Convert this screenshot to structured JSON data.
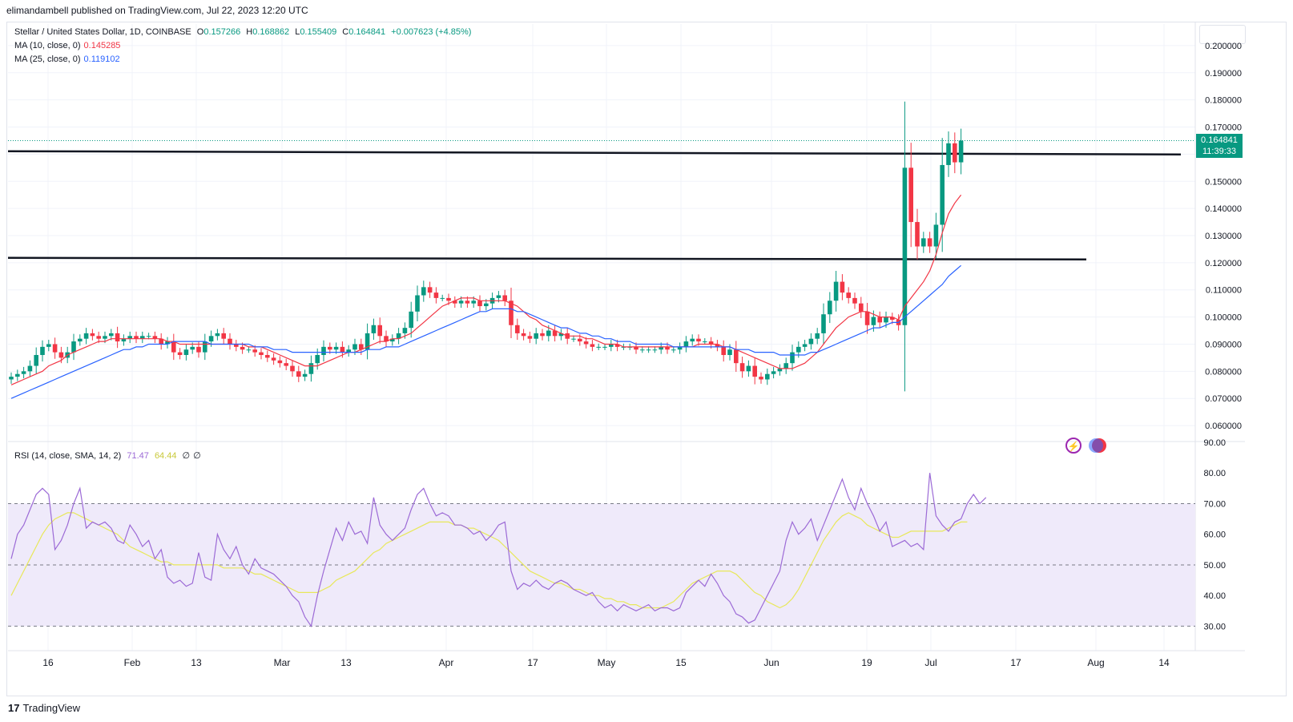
{
  "header": {
    "published": "elimandambell published on TradingView.com, Jul 22, 2023 12:20 UTC"
  },
  "legend": {
    "symbol": "Stellar / United States Dollar, 1D, COINBASE",
    "o_label": "O",
    "o": "0.157266",
    "h_label": "H",
    "h": "0.168862",
    "l_label": "L",
    "l": "0.155409",
    "c_label": "C",
    "c": "0.164841",
    "change": "+0.007623 (+4.85%)",
    "ma10_label": "MA (10, close, 0)",
    "ma10_value": "0.145285",
    "ma25_label": "MA (25, close, 0)",
    "ma25_value": "0.119102",
    "rsi_label": "RSI (14, close, SMA, 14, 2)",
    "rsi_value": "71.47",
    "rsi_ma_value": "64.44",
    "rsi_extra1": "∅",
    "rsi_extra2": "∅"
  },
  "last_price": {
    "price": "0.164841",
    "countdown": "11:39:33"
  },
  "footer": {
    "brand": "TradingView"
  },
  "colors": {
    "up": "#089981",
    "down": "#f23645",
    "ma10": "#f23645",
    "ma25": "#2962ff",
    "rsi": "#9c6ad6",
    "rsi_ma": "#e8e85a",
    "rsi_band": "#efeafa"
  },
  "chart_data": [
    {
      "type": "candlestick",
      "title": "Stellar / United States Dollar, 1D, COINBASE",
      "ylim": [
        0.055,
        0.205
      ],
      "y_ticks": [
        "0.060000",
        "0.070000",
        "0.080000",
        "0.090000",
        "0.100000",
        "0.110000",
        "0.120000",
        "0.130000",
        "0.140000",
        "0.150000",
        "0.160000",
        "0.170000",
        "0.180000",
        "0.190000",
        "0.200000"
      ],
      "x_ticks": [
        "16",
        "Feb",
        "13",
        "Mar",
        "13",
        "Apr",
        "17",
        "May",
        "15",
        "Jun",
        "19",
        "Jul",
        "17",
        "Aug",
        "14"
      ],
      "horizontal_levels": [
        0.1605,
        0.1215
      ],
      "close": [
        0.078,
        0.079,
        0.08,
        0.082,
        0.086,
        0.089,
        0.09,
        0.087,
        0.085,
        0.087,
        0.091,
        0.092,
        0.094,
        0.093,
        0.092,
        0.093,
        0.094,
        0.091,
        0.092,
        0.093,
        0.092,
        0.093,
        0.093,
        0.092,
        0.09,
        0.091,
        0.087,
        0.086,
        0.088,
        0.089,
        0.087,
        0.091,
        0.093,
        0.094,
        0.092,
        0.09,
        0.089,
        0.088,
        0.088,
        0.087,
        0.086,
        0.085,
        0.084,
        0.083,
        0.082,
        0.08,
        0.078,
        0.079,
        0.083,
        0.086,
        0.089,
        0.088,
        0.089,
        0.087,
        0.088,
        0.09,
        0.088,
        0.094,
        0.097,
        0.093,
        0.091,
        0.092,
        0.094,
        0.096,
        0.102,
        0.108,
        0.111,
        0.109,
        0.107,
        0.107,
        0.106,
        0.105,
        0.106,
        0.105,
        0.106,
        0.104,
        0.105,
        0.107,
        0.108,
        0.106,
        0.097,
        0.094,
        0.093,
        0.092,
        0.094,
        0.093,
        0.095,
        0.093,
        0.094,
        0.092,
        0.092,
        0.091,
        0.09,
        0.089,
        0.089,
        0.089,
        0.09,
        0.089,
        0.089,
        0.089,
        0.088,
        0.088,
        0.088,
        0.088,
        0.089,
        0.088,
        0.088,
        0.089,
        0.091,
        0.092,
        0.091,
        0.091,
        0.09,
        0.089,
        0.086,
        0.088,
        0.083,
        0.08,
        0.082,
        0.078,
        0.077,
        0.079,
        0.08,
        0.081,
        0.083,
        0.087,
        0.089,
        0.09,
        0.092,
        0.094,
        0.101,
        0.106,
        0.113,
        0.109,
        0.107,
        0.105,
        0.102,
        0.097,
        0.1,
        0.098,
        0.1,
        0.099,
        0.097,
        0.155,
        0.135,
        0.126,
        0.129,
        0.126,
        0.134,
        0.156,
        0.164,
        0.157,
        0.165
      ],
      "ma10": [
        0.075,
        0.076,
        0.077,
        0.078,
        0.079,
        0.08,
        0.082,
        0.083,
        0.084,
        0.086,
        0.087,
        0.088,
        0.089,
        0.09,
        0.091,
        0.091,
        0.092,
        0.092,
        0.092,
        0.092,
        0.092,
        0.092,
        0.092,
        0.092,
        0.092,
        0.091,
        0.091,
        0.09,
        0.09,
        0.09,
        0.09,
        0.09,
        0.09,
        0.09,
        0.09,
        0.09,
        0.09,
        0.09,
        0.089,
        0.089,
        0.089,
        0.088,
        0.087,
        0.086,
        0.085,
        0.084,
        0.083,
        0.082,
        0.082,
        0.082,
        0.083,
        0.084,
        0.085,
        0.086,
        0.087,
        0.087,
        0.088,
        0.089,
        0.09,
        0.091,
        0.091,
        0.092,
        0.092,
        0.093,
        0.094,
        0.096,
        0.098,
        0.1,
        0.102,
        0.104,
        0.105,
        0.106,
        0.107,
        0.107,
        0.107,
        0.106,
        0.106,
        0.106,
        0.106,
        0.106,
        0.105,
        0.104,
        0.102,
        0.1,
        0.099,
        0.097,
        0.096,
        0.095,
        0.094,
        0.093,
        0.093,
        0.093,
        0.092,
        0.092,
        0.091,
        0.09,
        0.09,
        0.09,
        0.089,
        0.089,
        0.089,
        0.089,
        0.089,
        0.089,
        0.089,
        0.089,
        0.089,
        0.089,
        0.089,
        0.089,
        0.09,
        0.09,
        0.09,
        0.09,
        0.089,
        0.089,
        0.088,
        0.087,
        0.086,
        0.085,
        0.084,
        0.083,
        0.082,
        0.081,
        0.081,
        0.081,
        0.082,
        0.083,
        0.085,
        0.087,
        0.09,
        0.093,
        0.096,
        0.098,
        0.1,
        0.101,
        0.102,
        0.102,
        0.101,
        0.1,
        0.1,
        0.1,
        0.099,
        0.104,
        0.107,
        0.11,
        0.113,
        0.117,
        0.123,
        0.131,
        0.138,
        0.142,
        0.145
      ],
      "ma25": [
        0.07,
        0.071,
        0.072,
        0.073,
        0.074,
        0.075,
        0.076,
        0.077,
        0.078,
        0.079,
        0.08,
        0.081,
        0.082,
        0.083,
        0.084,
        0.085,
        0.086,
        0.087,
        0.088,
        0.088,
        0.089,
        0.089,
        0.09,
        0.09,
        0.09,
        0.09,
        0.091,
        0.091,
        0.091,
        0.091,
        0.091,
        0.091,
        0.09,
        0.09,
        0.09,
        0.09,
        0.09,
        0.09,
        0.09,
        0.089,
        0.089,
        0.089,
        0.088,
        0.088,
        0.088,
        0.087,
        0.087,
        0.087,
        0.087,
        0.087,
        0.087,
        0.087,
        0.087,
        0.087,
        0.087,
        0.087,
        0.087,
        0.088,
        0.088,
        0.088,
        0.089,
        0.089,
        0.089,
        0.09,
        0.091,
        0.092,
        0.093,
        0.094,
        0.095,
        0.096,
        0.097,
        0.098,
        0.099,
        0.1,
        0.101,
        0.102,
        0.102,
        0.103,
        0.103,
        0.103,
        0.103,
        0.102,
        0.102,
        0.101,
        0.1,
        0.099,
        0.098,
        0.097,
        0.096,
        0.096,
        0.095,
        0.094,
        0.094,
        0.093,
        0.093,
        0.092,
        0.092,
        0.091,
        0.091,
        0.091,
        0.09,
        0.09,
        0.09,
        0.09,
        0.09,
        0.09,
        0.089,
        0.089,
        0.089,
        0.089,
        0.089,
        0.089,
        0.089,
        0.089,
        0.089,
        0.089,
        0.088,
        0.088,
        0.088,
        0.087,
        0.087,
        0.087,
        0.087,
        0.086,
        0.086,
        0.086,
        0.086,
        0.086,
        0.087,
        0.087,
        0.088,
        0.089,
        0.09,
        0.091,
        0.092,
        0.093,
        0.094,
        0.095,
        0.096,
        0.096,
        0.097,
        0.098,
        0.098,
        0.1,
        0.102,
        0.104,
        0.106,
        0.108,
        0.11,
        0.112,
        0.115,
        0.117,
        0.119
      ]
    },
    {
      "type": "line",
      "title": "RSI (14, close, SMA, 14, 2)",
      "ylim": [
        22,
        90
      ],
      "y_ticks": [
        "30.00",
        "40.00",
        "50.00",
        "60.00",
        "70.00",
        "80.00",
        "90.00"
      ],
      "levels": [
        70,
        50,
        30
      ],
      "rsi_values": [
        52,
        60,
        63,
        68,
        73,
        75,
        73,
        55,
        58,
        63,
        70,
        75,
        62,
        64,
        63,
        64,
        62,
        58,
        57,
        63,
        60,
        56,
        58,
        52,
        55,
        46,
        44,
        45,
        43,
        44,
        54,
        46,
        45,
        60,
        55,
        52,
        56,
        50,
        47,
        52,
        49,
        48,
        47,
        45,
        43,
        40,
        38,
        33,
        30,
        40,
        48,
        55,
        62,
        58,
        64,
        60,
        61,
        57,
        72,
        63,
        60,
        58,
        60,
        62,
        68,
        73,
        75,
        70,
        66,
        67,
        66,
        63,
        63,
        62,
        60,
        61,
        58,
        60,
        63,
        64,
        48,
        42,
        44,
        43,
        45,
        43,
        42,
        44,
        45,
        44,
        42,
        41,
        40,
        41,
        38,
        36,
        37,
        35,
        37,
        36,
        35,
        36,
        37,
        35,
        36,
        36,
        35,
        36,
        41,
        43,
        45,
        43,
        47,
        44,
        40,
        38,
        34,
        33,
        31,
        32,
        36,
        40,
        44,
        48,
        58,
        64,
        60,
        62,
        65,
        58,
        63,
        68,
        73,
        78,
        72,
        68,
        75,
        70,
        66,
        61,
        64,
        56,
        57,
        58,
        56,
        57,
        55,
        80,
        66,
        63,
        61,
        64,
        65,
        70,
        73,
        70,
        72
      ],
      "rsi_ma_values": [
        40,
        44,
        48,
        52,
        56,
        60,
        63,
        65,
        66,
        67,
        67,
        66,
        65,
        64,
        63,
        62,
        61,
        60,
        58,
        56,
        55,
        54,
        53,
        52,
        51,
        51,
        50,
        50,
        50,
        50,
        50,
        50,
        50,
        50,
        49,
        49,
        49,
        49,
        48,
        47,
        47,
        46,
        45,
        44,
        43,
        42,
        41,
        41,
        41,
        41,
        42,
        43,
        45,
        46,
        47,
        48,
        50,
        52,
        54,
        55,
        57,
        58,
        59,
        60,
        61,
        62,
        63,
        64,
        64,
        64,
        64,
        63,
        63,
        62,
        62,
        61,
        60,
        59,
        58,
        56,
        54,
        52,
        50,
        48,
        47,
        46,
        45,
        44,
        44,
        43,
        42,
        42,
        41,
        40,
        40,
        39,
        39,
        38,
        38,
        37,
        37,
        36,
        36,
        36,
        36,
        37,
        38,
        40,
        42,
        44,
        45,
        46,
        47,
        48,
        48,
        48,
        47,
        45,
        43,
        41,
        40,
        38,
        37,
        36,
        37,
        39,
        42,
        46,
        50,
        54,
        58,
        61,
        64,
        66,
        67,
        66,
        65,
        63,
        62,
        61,
        60,
        59,
        59,
        60,
        61,
        61,
        61,
        61,
        61,
        61,
        62,
        63,
        64,
        64
      ]
    }
  ]
}
